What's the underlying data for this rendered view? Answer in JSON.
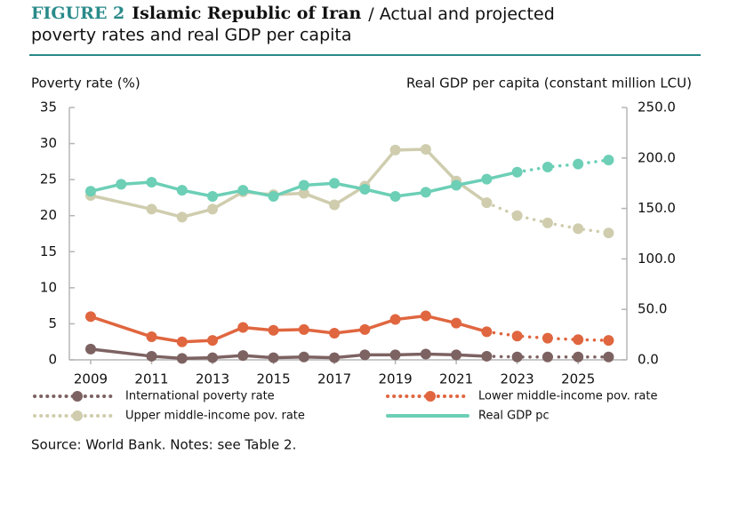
{
  "chart_data": {
    "type": "line",
    "figure_label": "FIGURE 2",
    "title_country": "Islamic Republic of Iran",
    "title_rest": "/ Actual and projected",
    "title_line2": "poverty rates and real GDP per capita",
    "y_label": "Poverty rate (%)",
    "y2_label": "Real GDP per capita (constant million LCU)",
    "source": "Source: World Bank. Notes: see Table 2.",
    "xlim": [
      2008.3,
      2026.6
    ],
    "xticks": [
      2009,
      2011,
      2013,
      2015,
      2017,
      2019,
      2021,
      2023,
      2025
    ],
    "ylim": [
      0,
      35
    ],
    "yticks": [
      0,
      5,
      10,
      15,
      20,
      25,
      30,
      35
    ],
    "y2lim": [
      0,
      250
    ],
    "y2ticks": [
      {
        "value": 0,
        "label": "0.0"
      },
      {
        "value": 50,
        "label": "50.0"
      },
      {
        "value": 100,
        "label": "100.0"
      },
      {
        "value": 150,
        "label": "150.0"
      },
      {
        "value": 200,
        "label": "200.0"
      },
      {
        "value": 250,
        "label": "250.0"
      }
    ],
    "series": [
      {
        "name": "International poverty rate",
        "color": "#7d6262",
        "dotted_from": 2022,
        "x": [
          2009,
          2011,
          2012,
          2013,
          2014,
          2015,
          2016,
          2017,
          2018,
          2019,
          2020,
          2021,
          2022,
          2023,
          2024,
          2025,
          2026
        ],
        "values": [
          1.5,
          0.5,
          0.2,
          0.3,
          0.6,
          0.3,
          0.4,
          0.3,
          0.7,
          0.7,
          0.8,
          0.7,
          0.5,
          0.4,
          0.4,
          0.4,
          0.4
        ]
      },
      {
        "name": "Lower middle-income pov. rate",
        "color": "#e0663f",
        "dotted_from": 2022,
        "x": [
          2009,
          2011,
          2012,
          2013,
          2014,
          2015,
          2016,
          2017,
          2018,
          2019,
          2020,
          2021,
          2022,
          2023,
          2024,
          2025,
          2026
        ],
        "values": [
          6.0,
          3.2,
          2.5,
          2.7,
          4.5,
          4.1,
          4.2,
          3.7,
          4.2,
          5.6,
          6.1,
          5.1,
          3.9,
          3.3,
          3.0,
          2.8,
          2.7
        ]
      },
      {
        "name": "Upper middle-income pov. rate",
        "color": "#cfcdae",
        "dotted_from": 2022,
        "x": [
          2009,
          2011,
          2012,
          2013,
          2014,
          2015,
          2016,
          2017,
          2018,
          2019,
          2020,
          2021,
          2022,
          2023,
          2024,
          2025,
          2026
        ],
        "values": [
          22.8,
          20.9,
          19.8,
          20.9,
          23.3,
          22.9,
          23.1,
          21.5,
          24.1,
          29.1,
          29.2,
          24.8,
          21.8,
          20.0,
          19.0,
          18.2,
          17.6
        ]
      },
      {
        "name": "Real GDP pc",
        "color": "#6ccfb6",
        "axis": "y2",
        "dotted_from": 2023,
        "x": [
          2009,
          2010,
          2011,
          2012,
          2013,
          2014,
          2015,
          2016,
          2017,
          2018,
          2019,
          2020,
          2021,
          2022,
          2023,
          2024,
          2025,
          2026
        ],
        "values": [
          167,
          174,
          176,
          168,
          162,
          168,
          162,
          173,
          175,
          169,
          162,
          166,
          173,
          179,
          186,
          191,
          194,
          198
        ]
      }
    ]
  }
}
